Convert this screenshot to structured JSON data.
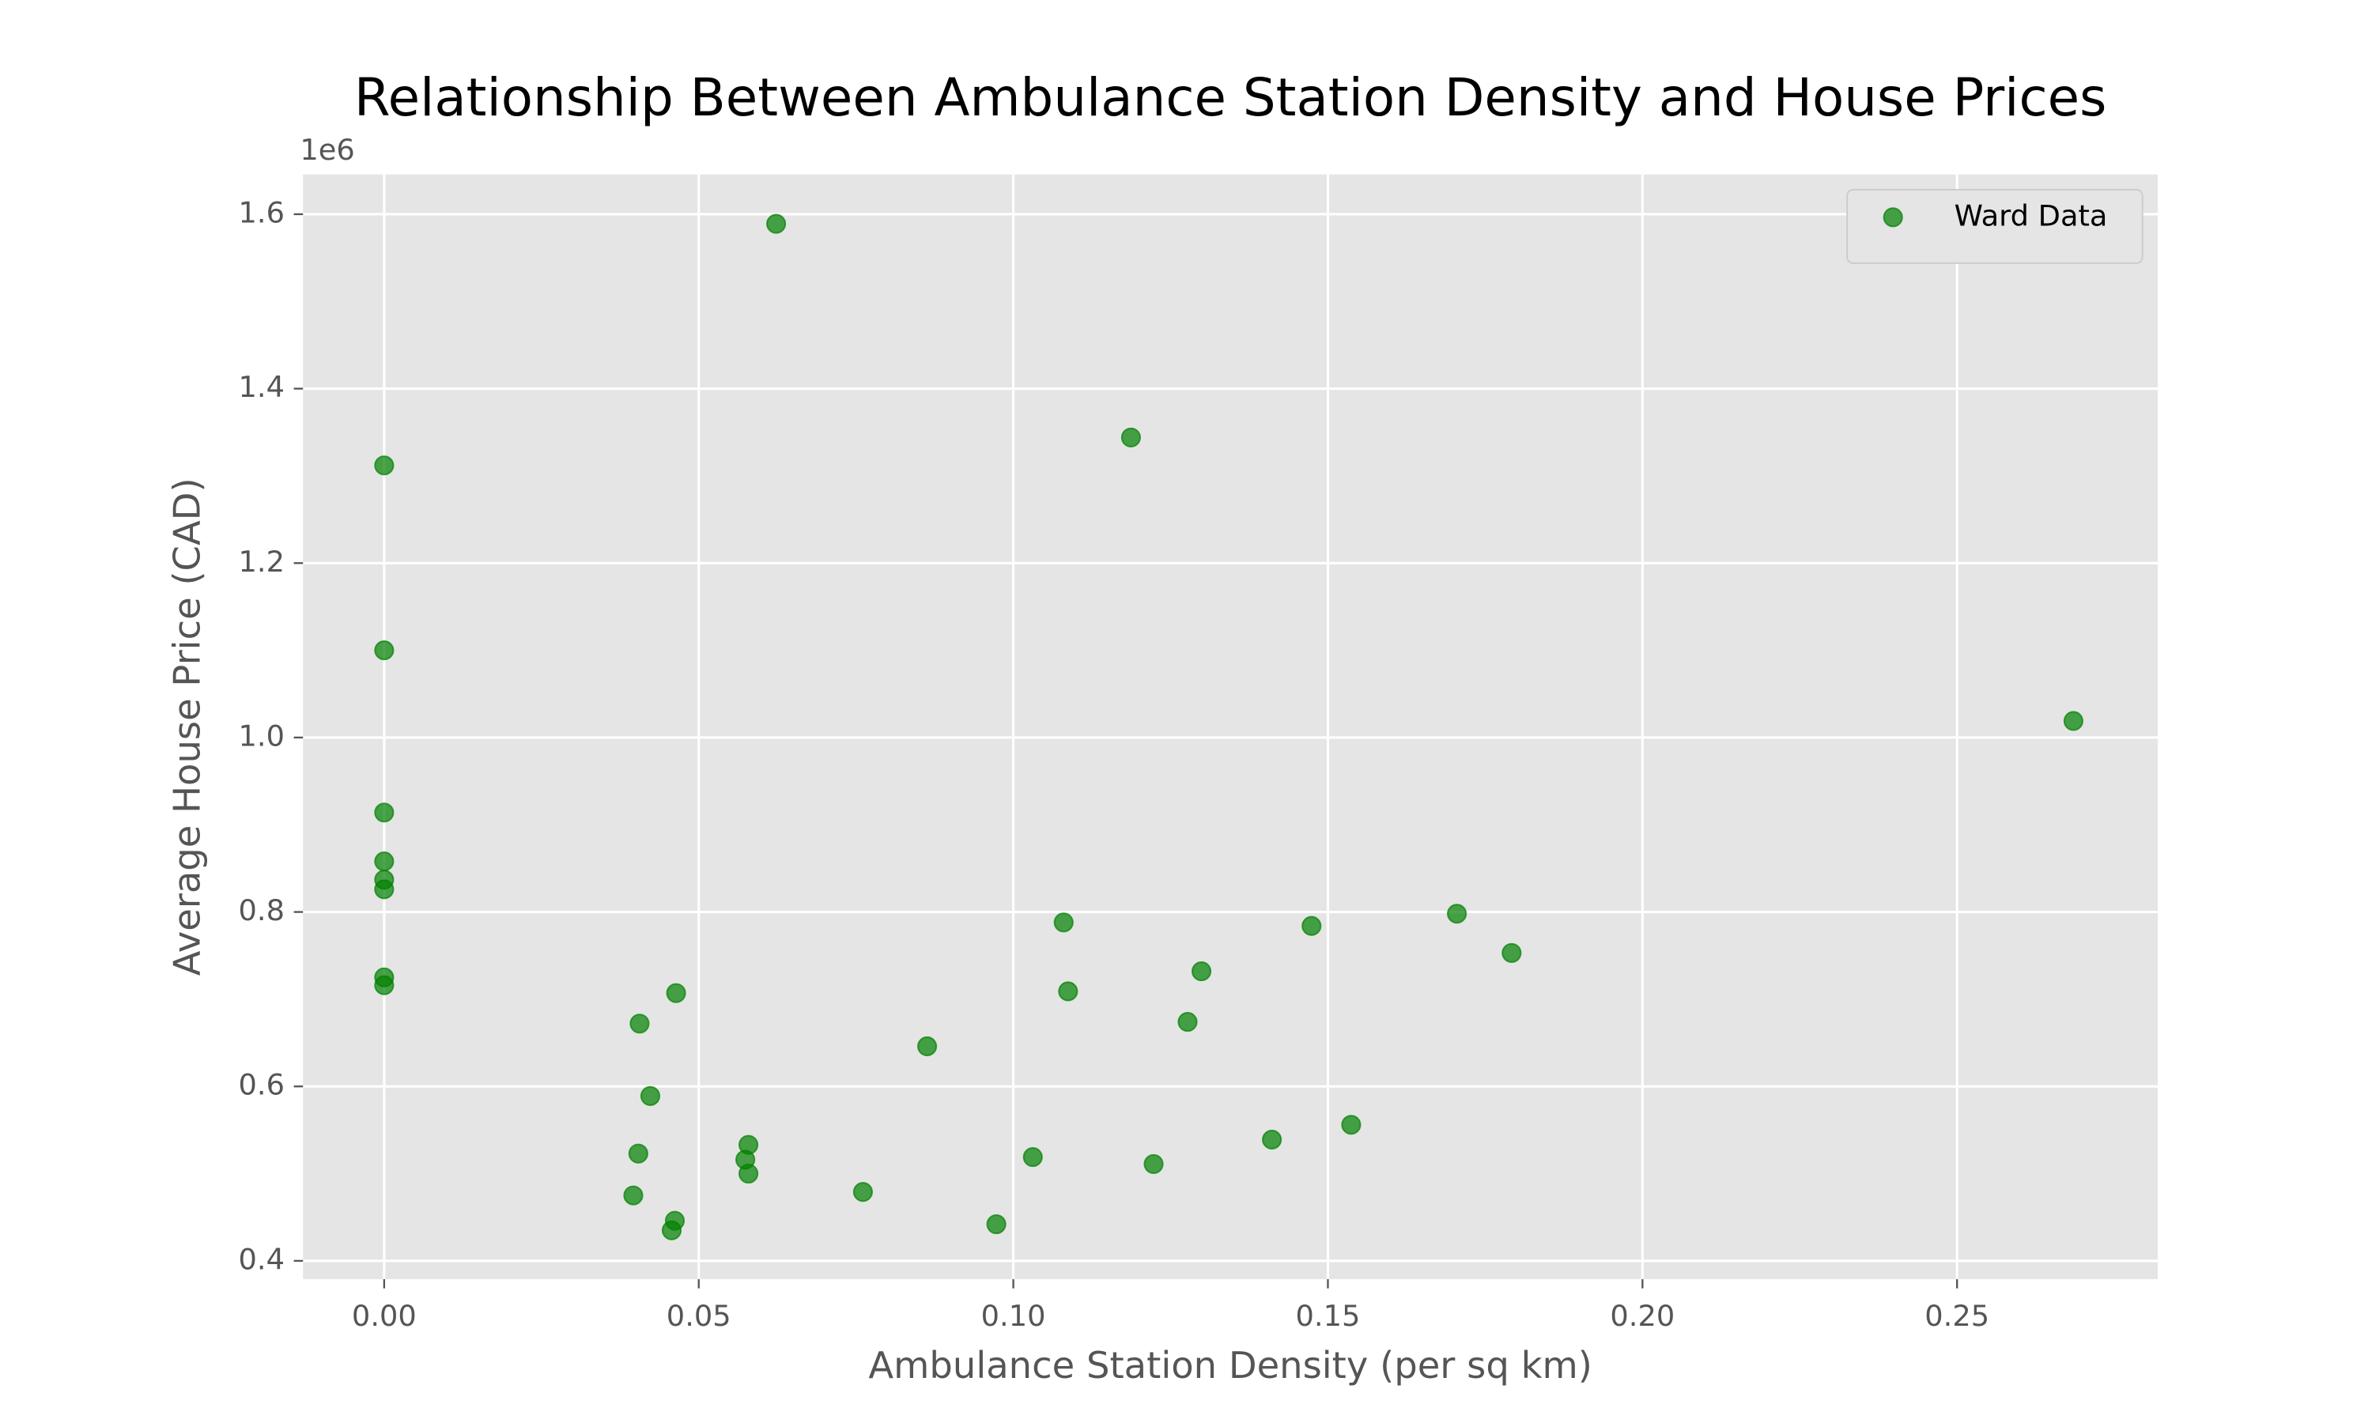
{
  "chart_data": {
    "type": "scatter",
    "title": "Relationship Between Ambulance Station Density and House Prices",
    "x_label": "Ambulance Station Density (per sq km)",
    "y_label": "Average House Price (CAD)",
    "y_offset_label": "1e6",
    "legend": "upper right",
    "grid": true,
    "series": [
      {
        "name": "Ward Data",
        "color": "#008000",
        "x": [
          0,
          0,
          0,
          0,
          0,
          0,
          0,
          0,
          0.0623,
          0.1187,
          0.2685,
          0.0406,
          0.0464,
          0.0423,
          0.0404,
          0.0396,
          0.0462,
          0.0457,
          0.0579,
          0.0574,
          0.0579,
          0.0761,
          0.0863,
          0.0973,
          0.1031,
          0.108,
          0.1087,
          0.1223,
          0.1277,
          0.1299,
          0.1411,
          0.1474,
          0.1537,
          0.1705,
          0.1792
        ],
        "values": [
          1312000,
          1100000,
          914000,
          858000,
          837000,
          826000,
          725000,
          716000,
          1589000,
          1344000,
          1019000,
          672000,
          707000,
          589000,
          523000,
          475000,
          446000,
          435000,
          533000,
          516000,
          500000,
          479000,
          646000,
          442000,
          519000,
          788000,
          709000,
          511000,
          674000,
          732000,
          539000,
          784000,
          556000,
          798000,
          753000
        ]
      }
    ],
    "xlim": [
      -0.0129,
      0.2819
    ],
    "ylim": [
      379000,
      1645600
    ],
    "xticks": [
      {
        "value": 0,
        "label": "0.00"
      },
      0.05,
      {
        "value": 0.1,
        "label": "0.10"
      },
      0.15,
      {
        "value": 0.2,
        "label": "0.20"
      },
      0.25
    ],
    "yticks": [
      {
        "value": 400000,
        "label": "0.4"
      },
      {
        "value": 600000,
        "label": "0.6"
      },
      {
        "value": 800000,
        "label": "0.8"
      },
      {
        "value": 1000000,
        "label": "1.0"
      },
      {
        "value": 1200000,
        "label": "1.2"
      },
      {
        "value": 1400000,
        "label": "1.4"
      },
      {
        "value": 1600000,
        "label": "1.6"
      }
    ]
  }
}
